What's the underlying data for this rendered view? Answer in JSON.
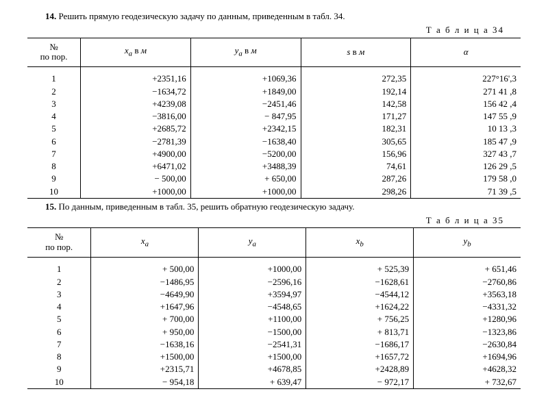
{
  "task14": {
    "number": "14.",
    "text_before": "Решить прямую геодезическую задачу по данным, приведенным в табл. 34.",
    "table_label": "Т а б л и ц а  34",
    "columns": {
      "idx1": "№",
      "idx2": "по пор.",
      "xa": "xₐ в м",
      "ya": "yₐ в м",
      "s": "s в м",
      "alpha": "α"
    },
    "rows": [
      {
        "n": "1",
        "xa": "+2351,16",
        "ya": "+1069,36",
        "s": "272,35",
        "a": "227°16',3"
      },
      {
        "n": "2",
        "xa": "−1634,72",
        "ya": "+1849,00",
        "s": "192,14",
        "a": "271 41 ,8"
      },
      {
        "n": "3",
        "xa": "+4239,08",
        "ya": "−2451,46",
        "s": "142,58",
        "a": "156 42 ,4"
      },
      {
        "n": "4",
        "xa": "−3816,00",
        "ya": "− 847,95",
        "s": "171,27",
        "a": "147 55 ,9"
      },
      {
        "n": "5",
        "xa": "+2685,72",
        "ya": "+2342,15",
        "s": "182,31",
        "a": "10 13 ,3"
      },
      {
        "n": "6",
        "xa": "−2781,39",
        "ya": "−1638,40",
        "s": "305,65",
        "a": "185 47 ,9"
      },
      {
        "n": "7",
        "xa": "+4900,00",
        "ya": "−5200,00",
        "s": "156,96",
        "a": "327 43 ,7"
      },
      {
        "n": "8",
        "xa": "+6471,02",
        "ya": "+3488,39",
        "s": "74,61",
        "a": "126 29 ,5"
      },
      {
        "n": "9",
        "xa": "− 500,00",
        "ya": "+ 650,00",
        "s": "287,26",
        "a": "179 58 ,0"
      },
      {
        "n": "10",
        "xa": "+1000,00",
        "ya": "+1000,00",
        "s": "298,26",
        "a": "71 39 ,5"
      }
    ]
  },
  "task15": {
    "number": "15.",
    "text_before": "По данным, приведенным в табл. 35, решить обратную геодезическую задачу.",
    "table_label": "Т а б л и ц а  35",
    "columns": {
      "idx1": "№",
      "idx2": "по пор.",
      "xa": "xₐ",
      "ya": "yₐ",
      "xb": "x_b",
      "yb": "y_b"
    },
    "rows": [
      {
        "n": "1",
        "xa": "+ 500,00",
        "ya": "+1000,00",
        "xb": "+ 525,39",
        "yb": "+ 651,46"
      },
      {
        "n": "2",
        "xa": "−1486,95",
        "ya": "−2596,16",
        "xb": "−1628,61",
        "yb": "−2760,86"
      },
      {
        "n": "3",
        "xa": "−4649,90",
        "ya": "+3594,97",
        "xb": "−4544,12",
        "yb": "+3563,18"
      },
      {
        "n": "4",
        "xa": "+1647,96",
        "ya": "−4548,65",
        "xb": "+1624,22",
        "yb": "−4331,32"
      },
      {
        "n": "5",
        "xa": "+ 700,00",
        "ya": "+1100,00",
        "xb": "+ 756,25",
        "yb": "+1280,96"
      },
      {
        "n": "6",
        "xa": "+ 950,00",
        "ya": "−1500,00",
        "xb": "+ 813,71",
        "yb": "−1323,86"
      },
      {
        "n": "7",
        "xa": "−1638,16",
        "ya": "−2541,31",
        "xb": "−1686,17",
        "yb": "−2630,84"
      },
      {
        "n": "8",
        "xa": "+1500,00",
        "ya": "+1500,00",
        "xb": "+1657,72",
        "yb": "+1694,96"
      },
      {
        "n": "9",
        "xa": "+2315,71",
        "ya": "+4678,85",
        "xb": "+2428,89",
        "yb": "+4628,32"
      },
      {
        "n": "10",
        "xa": "− 954,18",
        "ya": "+ 639,47",
        "xb": "− 972,17",
        "yb": "+ 732,67"
      }
    ]
  }
}
